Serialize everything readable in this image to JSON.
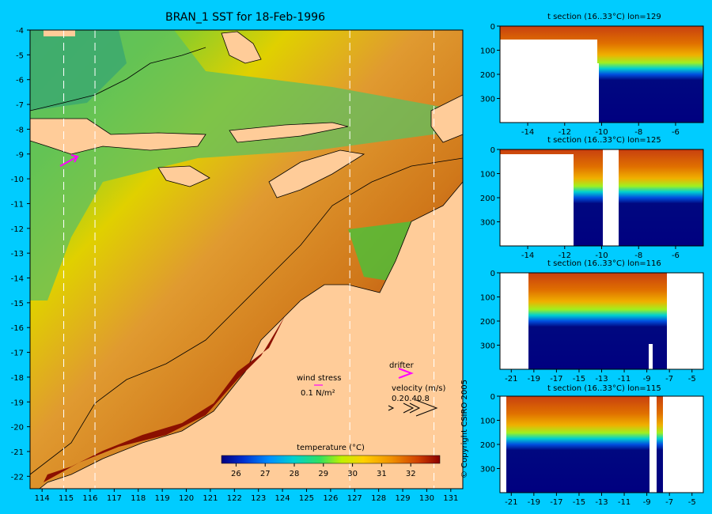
{
  "title": "BRAN_1 SST for 18-Feb-1996",
  "copyright": "© Copyright CSIRO 2005",
  "map": {
    "x_ticks": [
      "114",
      "115",
      "116",
      "117",
      "118",
      "119",
      "120",
      "121",
      "122",
      "123",
      "124",
      "125",
      "126",
      "127",
      "128",
      "129",
      "130",
      "131"
    ],
    "y_ticks": [
      "-4",
      "-5",
      "-6",
      "-7",
      "-8",
      "-9",
      "-10",
      "-11",
      "-12",
      "-13",
      "-14",
      "-15",
      "-16",
      "-17",
      "-18",
      "-19",
      "-20",
      "-21",
      "-22"
    ],
    "section_lines_lon": [
      114.9,
      116.2,
      126.8,
      130.3
    ],
    "legend": {
      "label": "temperature (°C)",
      "ticks": [
        "26",
        "27",
        "28",
        "29",
        "30",
        "31",
        "32"
      ],
      "colors": [
        "#000080",
        "#0020c0",
        "#0060ff",
        "#00b0ff",
        "#00e0c0",
        "#40e070",
        "#a0f020",
        "#e0f000",
        "#ffd000",
        "#f0a000",
        "#e07000",
        "#d04000",
        "#b01000",
        "#8b0000"
      ]
    },
    "wind": {
      "label": "wind stress",
      "value": "0.1 N/m²"
    },
    "drifter": {
      "label": "drifter"
    },
    "velocity": {
      "label": "velocity (m/s)",
      "values": [
        "0.2",
        "0.4",
        "0.8"
      ]
    }
  },
  "chart_data": [
    {
      "type": "heatmap",
      "title": "BRAN_1 SST for 18-Feb-1996",
      "x_range": [
        113.5,
        131.5
      ],
      "y_range": [
        -22.5,
        -4
      ],
      "colorbar_label": "temperature (°C)",
      "colorbar_range": [
        25.5,
        33
      ]
    },
    {
      "type": "heatmap",
      "title": "t section (16..33°C) lon=129",
      "x_ticks": [
        "-14",
        "-12",
        "-10",
        "-8",
        "-6"
      ],
      "y_ticks": [
        "0",
        "100",
        "200",
        "300"
      ],
      "x_range": [
        -15.5,
        -4.5
      ],
      "y_range": [
        0,
        400
      ]
    },
    {
      "type": "heatmap",
      "title": "t section (16..33°C) lon=125",
      "x_ticks": [
        "-14",
        "-12",
        "-10",
        "-8",
        "-6"
      ],
      "y_ticks": [
        "0",
        "100",
        "200",
        "300"
      ],
      "x_range": [
        -15.5,
        -4.5
      ],
      "y_range": [
        0,
        400
      ]
    },
    {
      "type": "heatmap",
      "title": "t section (16..33°C) lon=116",
      "x_ticks": [
        "-21",
        "-19",
        "-17",
        "-15",
        "-13",
        "-11",
        "-9",
        "-7",
        "-5"
      ],
      "y_ticks": [
        "0",
        "100",
        "200",
        "300"
      ],
      "x_range": [
        -22,
        -4
      ],
      "y_range": [
        0,
        400
      ]
    },
    {
      "type": "heatmap",
      "title": "t section (16..33°C) lon=115",
      "x_ticks": [
        "-21",
        "-19",
        "-17",
        "-15",
        "-13",
        "-11",
        "-9",
        "-7",
        "-5"
      ],
      "y_ticks": [
        "0",
        "100",
        "200",
        "300"
      ],
      "x_range": [
        -22,
        -4
      ],
      "y_range": [
        0,
        400
      ]
    }
  ]
}
